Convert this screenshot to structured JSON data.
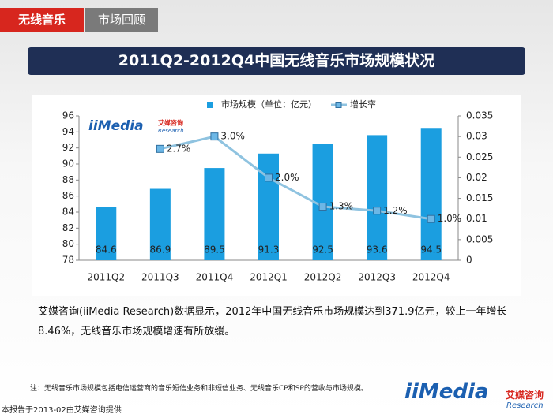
{
  "header": {
    "tag": "无线音乐",
    "section": "市场回顾"
  },
  "chart_data": {
    "type": "bar_line",
    "title": "2011Q2-2012Q4中国无线音乐市场规模状况",
    "categories": [
      "2011Q2",
      "2011Q3",
      "2011Q4",
      "2012Q1",
      "2012Q2",
      "2012Q3",
      "2012Q4"
    ],
    "series": [
      {
        "name": "市场规模（单位：亿元）",
        "color": "#1b9ee0",
        "values": [
          84.6,
          86.9,
          89.5,
          91.3,
          92.5,
          93.6,
          94.5
        ]
      },
      {
        "name": "增长率",
        "color": "#8fc3e0",
        "axis": "y2",
        "values": [
          null,
          0.027,
          0.03,
          0.02,
          0.013,
          0.012,
          0.01
        ],
        "value_labels": [
          null,
          "2.7%",
          "3.0%",
          "2.0%",
          "1.3%",
          "1.2%",
          "1.0%"
        ]
      }
    ],
    "ylim": [
      78,
      96
    ],
    "yticks": [
      78,
      80,
      82,
      84,
      86,
      88,
      90,
      92,
      94,
      96
    ],
    "y2lim": [
      0,
      0.035
    ],
    "y2ticks": [
      0,
      0.005,
      0.01,
      0.015,
      0.02,
      0.025,
      0.03,
      0.035
    ],
    "grid": false,
    "legend": "top"
  },
  "description": "艾媒咨询(iiMedia Research)数据显示，2012年中国无线音乐市场规模达到371.9亿元，较上一年增长8.46%，无线音乐市场规模增速有所放缓。",
  "note": "注：无线音乐市场规模包括电信运营商的音乐短信业务和非短信业务、无线音乐CP和SP的营收与市场规模。",
  "source": "本报告于2013-02由艾媒咨询提供",
  "logo": {
    "brand": "iiMedia",
    "cn": "艾媒咨询",
    "en": "Research"
  }
}
